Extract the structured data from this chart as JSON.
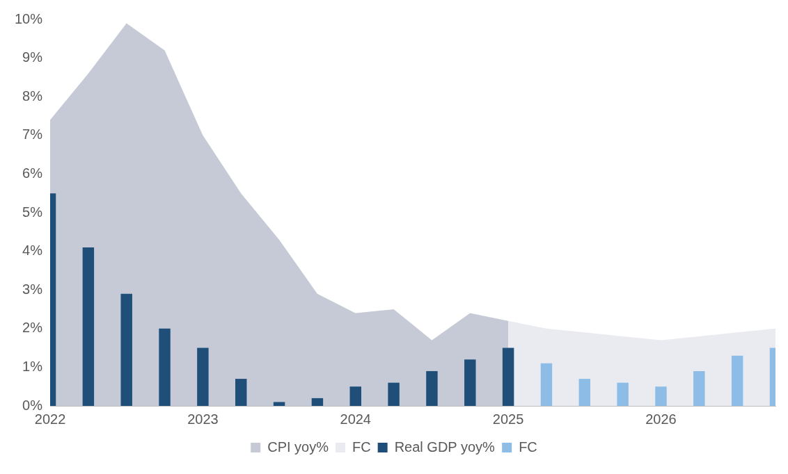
{
  "chart_data": {
    "type": "bar",
    "categories": [
      "2022",
      null,
      null,
      null,
      "2023",
      null,
      null,
      null,
      "2024",
      null,
      null,
      null,
      "2025",
      null,
      null,
      null,
      "2026",
      null,
      null,
      null
    ],
    "series": [
      {
        "name": "CPI yoy%",
        "type": "area",
        "color": "#c5cad6",
        "values": [
          7.4,
          8.6,
          9.9,
          9.2,
          7.0,
          5.5,
          4.3,
          2.9,
          2.4,
          2.5,
          1.7,
          2.4,
          2.2,
          null,
          null,
          null,
          null,
          null,
          null,
          null
        ]
      },
      {
        "name": "FC",
        "type": "area",
        "color": "#e9ebf1",
        "values": [
          null,
          null,
          null,
          null,
          null,
          null,
          null,
          null,
          null,
          null,
          null,
          null,
          2.2,
          2.0,
          1.9,
          1.8,
          1.7,
          1.8,
          1.9,
          2.0
        ]
      },
      {
        "name": "Real GDP yoy%",
        "color": "#1f4e79",
        "values": [
          5.5,
          4.1,
          2.9,
          2.0,
          1.5,
          0.7,
          0.1,
          0.2,
          0.5,
          0.6,
          0.9,
          1.2,
          1.5,
          null,
          null,
          null,
          null,
          null,
          null,
          null
        ]
      },
      {
        "name": "FC",
        "color": "#8dbde6",
        "values": [
          null,
          null,
          null,
          null,
          null,
          null,
          null,
          null,
          null,
          null,
          null,
          null,
          null,
          1.1,
          0.7,
          0.6,
          0.5,
          0.9,
          1.3,
          1.5
        ]
      }
    ],
    "ylim": [
      0,
      10
    ],
    "yticks": [
      {
        "value": 0,
        "label": "0%"
      },
      {
        "value": 1,
        "label": "1%"
      },
      {
        "value": 2,
        "label": "2%"
      },
      {
        "value": 3,
        "label": "3%"
      },
      {
        "value": 4,
        "label": "4%"
      },
      {
        "value": 5,
        "label": "5%"
      },
      {
        "value": 6,
        "label": "6%"
      },
      {
        "value": 7,
        "label": "7%"
      },
      {
        "value": 8,
        "label": "8%"
      },
      {
        "value": 9,
        "label": "9%"
      },
      {
        "value": 10,
        "label": "10%"
      }
    ],
    "grid": false,
    "legend": "bottom"
  }
}
